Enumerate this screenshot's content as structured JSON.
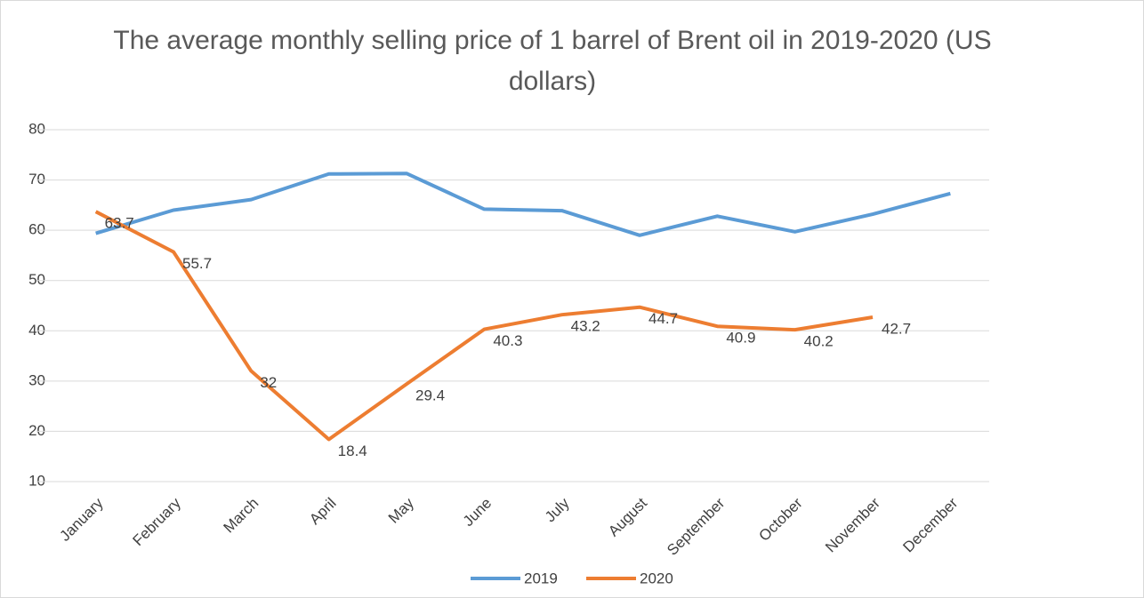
{
  "chart_data": {
    "type": "line",
    "title": "The average monthly selling price of 1 barrel of Brent oil in 2019-2020 (US dollars)",
    "categories": [
      "January",
      "February",
      "March",
      "April",
      "May",
      "June",
      "July",
      "August",
      "September",
      "October",
      "November",
      "December"
    ],
    "series": [
      {
        "name": "2019",
        "color": "#5b9bd5",
        "values": [
          59.4,
          64.0,
          66.1,
          71.2,
          71.3,
          64.2,
          63.9,
          59.0,
          62.8,
          59.7,
          63.2,
          67.3
        ]
      },
      {
        "name": "2020",
        "color": "#ed7d31",
        "values": [
          63.7,
          55.7,
          32,
          18.4,
          29.4,
          40.3,
          43.2,
          44.7,
          40.9,
          40.2,
          42.7,
          null
        ],
        "data_labels": true
      }
    ],
    "ylim": [
      10,
      80
    ],
    "yticks": [
      10,
      20,
      30,
      40,
      50,
      60,
      70,
      80
    ],
    "grid": true,
    "legend": "bottom"
  }
}
